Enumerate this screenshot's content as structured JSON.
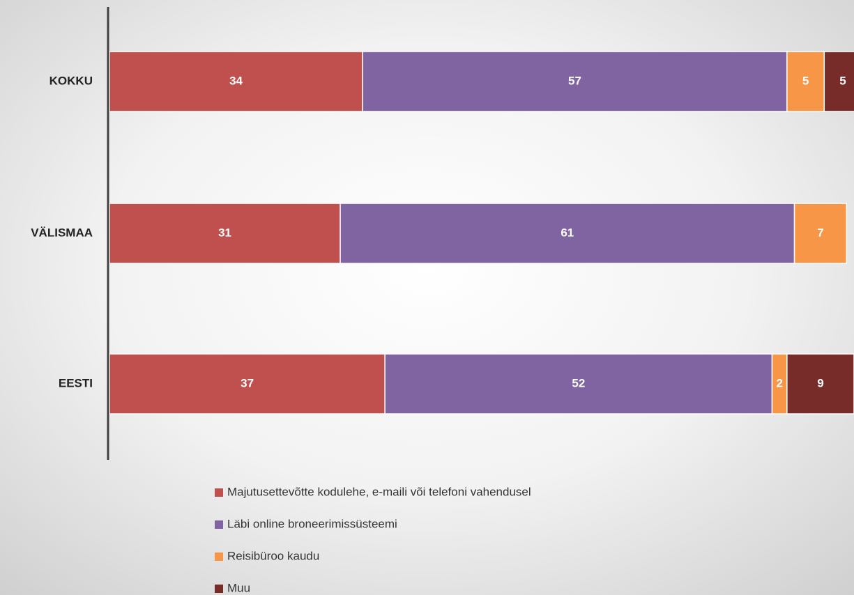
{
  "chart_data": {
    "type": "stacked-bar",
    "orientation": "horizontal",
    "categories": [
      "KOKKU",
      "VÄLISMAA",
      "EESTI"
    ],
    "series": [
      {
        "name": "Majutusettevõtte kodulehe, e-maili või telefoni vahendusel",
        "color": "#c0504d",
        "values": [
          34,
          31,
          37
        ]
      },
      {
        "name": "Läbi online broneerimissüsteemi",
        "color": "#8064a2",
        "values": [
          57,
          61,
          52
        ]
      },
      {
        "name": "Reisibüroo kaudu",
        "color": "#f79646",
        "values": [
          5,
          7,
          2
        ]
      },
      {
        "name": "Muu",
        "color": "#772c2a",
        "values": [
          5,
          null,
          9
        ]
      }
    ],
    "xlim": [
      0,
      100
    ]
  }
}
